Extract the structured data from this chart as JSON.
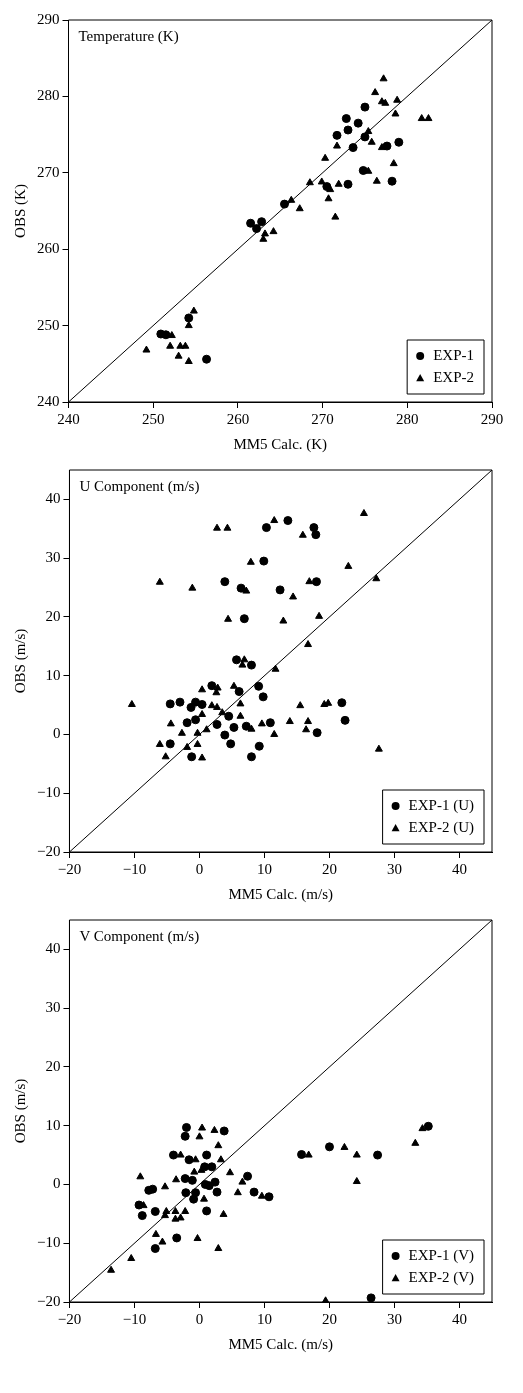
{
  "chart_data": [
    {
      "type": "scatter",
      "title": "Temperature (K)",
      "xlabel": "MM5 Calc. (K)",
      "ylabel": "OBS (K)",
      "xlim": [
        240,
        290
      ],
      "ylim": [
        240,
        290
      ],
      "xticks": [
        240,
        250,
        260,
        270,
        280,
        290
      ],
      "yticks": [
        240,
        250,
        260,
        270,
        280,
        290
      ],
      "grid": false,
      "legend": "bottom right",
      "series": [
        {
          "name": "EXP-1",
          "color": "#000000",
          "marker": "circle",
          "x": [
            275.0,
            272.8,
            273.0,
            271.7,
            274.2,
            275.0,
            273.6,
            277.6,
            279.0,
            274.8,
            278.2,
            270.5,
            273.0,
            265.5,
            261.5,
            262.8,
            262.2,
            254.2,
            250.9,
            256.3,
            251.5
          ],
          "values": [
            278.6,
            277.1,
            275.6,
            274.9,
            276.5,
            274.7,
            273.3,
            273.5,
            274.0,
            270.3,
            268.9,
            268.2,
            268.5,
            265.9,
            263.4,
            263.6,
            262.7,
            251.0,
            248.9,
            245.6,
            248.8
          ]
        },
        {
          "name": "EXP-2",
          "color": "#000000",
          "marker": "triangle",
          "x": [
            277.2,
            276.2,
            277.0,
            277.4,
            278.8,
            278.6,
            281.7,
            282.5,
            271.7,
            275.4,
            275.8,
            277.0,
            278.4,
            270.3,
            275.4,
            276.4,
            268.5,
            269.9,
            270.9,
            271.9,
            270.7,
            271.5,
            266.3,
            267.3,
            263.2,
            264.2,
            263.0,
            254.8,
            254.2,
            252.2,
            252.0,
            253.2,
            253.8,
            249.2,
            254.2,
            253.0
          ],
          "values": [
            282.3,
            280.5,
            279.3,
            279.1,
            279.5,
            277.7,
            277.1,
            277.1,
            273.5,
            275.4,
            274.0,
            273.3,
            271.2,
            271.9,
            270.2,
            268.9,
            268.7,
            268.8,
            267.8,
            268.5,
            266.6,
            264.2,
            266.4,
            265.3,
            262.0,
            262.3,
            261.3,
            251.9,
            250.0,
            248.7,
            247.3,
            247.3,
            247.3,
            246.8,
            245.3,
            246.0
          ]
        },
        {
          "type": "line",
          "color": "#000000",
          "marker": "none",
          "x": [
            240,
            290
          ],
          "values": [
            240,
            290
          ]
        }
      ]
    },
    {
      "type": "scatter",
      "title": "U Component (m/s)",
      "xlabel": "MM5 Calc. (m/s)",
      "ylabel": "OBS (m/s)",
      "xlim": [
        -20,
        45
      ],
      "ylim": [
        -20,
        45
      ],
      "xticks": [
        -20,
        -10,
        0,
        10,
        20,
        30,
        40
      ],
      "yticks": [
        -20,
        -10,
        0,
        10,
        20,
        30,
        40
      ],
      "grid": false,
      "legend": "bottom right",
      "series": [
        {
          "name": "EXP-1 (U)",
          "color": "#000000",
          "marker": "circle",
          "x": [
            13.6,
            10.3,
            17.6,
            17.9,
            9.9,
            3.9,
            6.4,
            12.4,
            18.0,
            6.9,
            5.7,
            8.0,
            9.1,
            1.9,
            6.1,
            9.8,
            -4.5,
            -3.0,
            -0.6,
            0.4,
            -1.3,
            21.9,
            22.4,
            -1.9,
            -0.6,
            4.5,
            2.7,
            5.3,
            7.2,
            10.9,
            18.1,
            3.9,
            -4.5,
            4.8,
            9.2,
            -1.2,
            8.0
          ],
          "values": [
            36.4,
            35.2,
            35.2,
            34.0,
            29.5,
            26.0,
            24.9,
            24.6,
            26.0,
            19.7,
            12.7,
            11.8,
            8.2,
            8.3,
            7.3,
            6.4,
            5.2,
            5.5,
            5.5,
            5.1,
            4.6,
            5.4,
            2.4,
            2.0,
            2.5,
            3.1,
            1.7,
            1.2,
            1.4,
            2.0,
            0.3,
            -0.1,
            -1.6,
            -1.6,
            -2.0,
            -3.8,
            -3.8
          ]
        },
        {
          "name": "EXP-2 (U)",
          "color": "#000000",
          "marker": "triangle",
          "x": [
            25.3,
            11.5,
            2.7,
            4.3,
            15.9,
            7.9,
            22.9,
            -6.1,
            -1.1,
            7.2,
            14.4,
            16.9,
            27.2,
            4.4,
            12.9,
            18.4,
            16.7,
            6.9,
            6.6,
            11.7,
            2.8,
            0.4,
            2.6,
            5.3,
            -10.4,
            1.9,
            2.7,
            6.3,
            15.5,
            19.2,
            19.8,
            -4.4,
            0.4,
            3.5,
            6.3,
            8.0,
            9.6,
            13.9,
            16.7,
            16.4,
            11.5,
            -2.7,
            1.1,
            -0.3,
            -6.1,
            -1.9,
            -0.3,
            -5.2,
            0.4,
            27.6
          ],
          "values": [
            37.6,
            36.4,
            35.1,
            35.1,
            33.9,
            29.3,
            28.6,
            25.9,
            24.9,
            24.4,
            23.4,
            26.0,
            26.5,
            19.6,
            19.3,
            20.1,
            15.3,
            12.7,
            11.8,
            11.1,
            7.9,
            7.6,
            7.1,
            8.2,
            5.1,
            4.9,
            4.6,
            5.2,
            4.9,
            5.1,
            5.3,
            1.8,
            3.4,
            3.7,
            3.1,
            0.9,
            1.8,
            2.2,
            2.2,
            0.8,
            0.0,
            0.2,
            0.8,
            0.2,
            -1.7,
            -2.2,
            -1.7,
            -3.8,
            -4.0,
            -2.5
          ]
        },
        {
          "type": "line",
          "color": "#000000",
          "marker": "none",
          "x": [
            -20,
            45
          ],
          "values": [
            -20,
            45
          ]
        }
      ]
    },
    {
      "type": "scatter",
      "title": "V Component (m/s)",
      "xlabel": "MM5 Calc. (m/s)",
      "ylabel": "OBS (m/s)",
      "xlim": [
        -20,
        45
      ],
      "ylim": [
        -20,
        45
      ],
      "xticks": [
        -20,
        -10,
        0,
        10,
        20,
        30,
        40
      ],
      "yticks": [
        -20,
        -10,
        0,
        10,
        20,
        30,
        40
      ],
      "grid": false,
      "legend": "bottom right",
      "series": [
        {
          "name": "EXP-1 (V)",
          "color": "#000000",
          "marker": "circle",
          "x": [
            35.2,
            20.0,
            27.4,
            15.7,
            -2.0,
            -2.2,
            3.8,
            -4.0,
            -1.6,
            1.1,
            0.8,
            1.9,
            -2.2,
            -1.1,
            0.9,
            2.4,
            7.4,
            -7.8,
            -7.2,
            1.5,
            -2.1,
            -0.6,
            2.7,
            -0.9,
            8.4,
            10.7,
            -9.3,
            -8.8,
            -6.8,
            1.1,
            -6.8,
            -3.5,
            26.4
          ],
          "values": [
            9.9,
            6.4,
            5.0,
            5.1,
            9.7,
            8.2,
            9.1,
            5.0,
            4.2,
            5.0,
            3.0,
            3.0,
            1.0,
            0.7,
            0.0,
            0.4,
            1.4,
            -1.0,
            -0.8,
            -0.2,
            -1.4,
            -1.4,
            -1.3,
            -2.5,
            -1.3,
            -2.1,
            -3.5,
            -5.3,
            -4.6,
            -4.5,
            -10.9,
            -9.1,
            -19.3
          ]
        },
        {
          "name": "EXP-2 (V)",
          "color": "#000000",
          "marker": "triangle",
          "x": [
            34.3,
            33.2,
            22.3,
            24.2,
            16.8,
            24.2,
            0.4,
            0.0,
            2.3,
            2.9,
            3.3,
            -2.9,
            -0.6,
            -0.8,
            0.3,
            4.7,
            6.6,
            -3.6,
            -5.3,
            -9.1,
            0.7,
            5.9,
            9.6,
            -8.6,
            -5.1,
            -3.7,
            -2.2,
            3.7,
            -5.3,
            -3.7,
            -2.9,
            -6.7,
            -5.7,
            -0.3,
            2.9,
            -10.5,
            -13.6,
            19.4
          ],
          "values": [
            9.5,
            7.0,
            6.3,
            5.0,
            5.0,
            0.5,
            9.6,
            8.1,
            9.2,
            6.6,
            4.2,
            5.0,
            4.2,
            2.1,
            2.4,
            2.0,
            0.4,
            0.8,
            -0.4,
            1.3,
            -2.5,
            -1.4,
            -2.0,
            -3.6,
            -4.6,
            -4.6,
            -4.6,
            -5.1,
            -5.3,
            -5.9,
            -5.7,
            -8.5,
            -9.8,
            -9.2,
            -10.9,
            -12.6,
            -14.6,
            -19.8
          ]
        },
        {
          "type": "line",
          "color": "#000000",
          "marker": "none",
          "x": [
            -20,
            45
          ],
          "values": [
            -20,
            45
          ]
        }
      ]
    }
  ]
}
